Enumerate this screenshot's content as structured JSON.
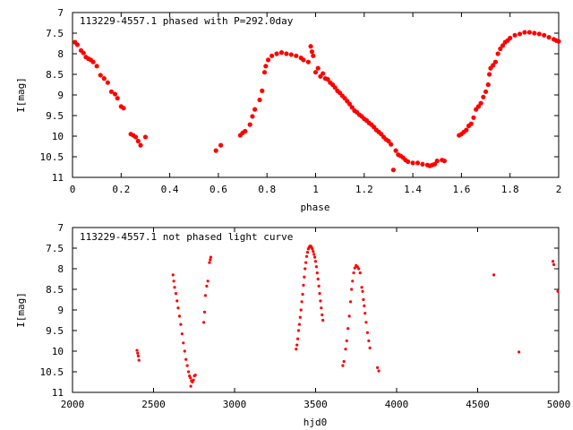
{
  "chart_data": [
    {
      "type": "scatter",
      "title": "113229-4557.1 phased with P=292.0day",
      "xlabel": "phase",
      "ylabel": "I[mag]",
      "xlim": [
        0,
        2
      ],
      "ylim": [
        11,
        7
      ],
      "y_inverted": true,
      "xticks": [
        0,
        0.2,
        0.4,
        0.6,
        0.8,
        1,
        1.2,
        1.4,
        1.6,
        1.8,
        2
      ],
      "xtick_labels": [
        "0",
        "0.2",
        "0.4",
        "0.6",
        "0.8",
        "1",
        "1.2",
        "1.4",
        "1.6",
        "1.8",
        "2"
      ],
      "yticks": [
        7,
        7.5,
        8,
        8.5,
        9,
        9.5,
        10,
        10.5,
        11
      ],
      "ytick_labels": [
        "7",
        "7.5",
        "8",
        "8.5",
        "9",
        "9.5",
        "10",
        "10.5",
        "11"
      ],
      "grid": false,
      "marker_color": "#ff0000",
      "points": [
        [
          0.01,
          7.72
        ],
        [
          0.02,
          7.78
        ],
        [
          0.035,
          7.92
        ],
        [
          0.045,
          7.98
        ],
        [
          0.055,
          8.08
        ],
        [
          0.065,
          8.12
        ],
        [
          0.075,
          8.15
        ],
        [
          0.085,
          8.2
        ],
        [
          0.1,
          8.3
        ],
        [
          0.115,
          8.52
        ],
        [
          0.13,
          8.6
        ],
        [
          0.145,
          8.7
        ],
        [
          0.16,
          8.92
        ],
        [
          0.175,
          8.98
        ],
        [
          0.185,
          9.08
        ],
        [
          0.2,
          9.28
        ],
        [
          0.21,
          9.32
        ],
        [
          0.24,
          9.95
        ],
        [
          0.25,
          9.98
        ],
        [
          0.26,
          10.02
        ],
        [
          0.27,
          10.12
        ],
        [
          0.28,
          10.22
        ],
        [
          0.3,
          10.02
        ],
        [
          0.59,
          10.35
        ],
        [
          0.61,
          10.22
        ],
        [
          0.69,
          9.98
        ],
        [
          0.7,
          9.92
        ],
        [
          0.71,
          9.88
        ],
        [
          0.73,
          9.72
        ],
        [
          0.74,
          9.52
        ],
        [
          0.75,
          9.35
        ],
        [
          0.77,
          9.12
        ],
        [
          0.78,
          8.9
        ],
        [
          0.79,
          8.45
        ],
        [
          0.795,
          8.3
        ],
        [
          0.805,
          8.15
        ],
        [
          0.82,
          8.05
        ],
        [
          0.84,
          8.0
        ],
        [
          0.86,
          7.97
        ],
        [
          0.88,
          8.0
        ],
        [
          0.9,
          8.02
        ],
        [
          0.92,
          8.05
        ],
        [
          0.94,
          8.1
        ],
        [
          0.95,
          8.15
        ],
        [
          0.97,
          8.2
        ],
        [
          0.98,
          7.82
        ],
        [
          0.985,
          7.95
        ],
        [
          0.99,
          8.05
        ],
        [
          1.0,
          8.45
        ],
        [
          1.01,
          8.35
        ],
        [
          1.02,
          8.55
        ],
        [
          1.03,
          8.48
        ],
        [
          1.04,
          8.6
        ],
        [
          1.05,
          8.62
        ],
        [
          1.06,
          8.7
        ],
        [
          1.07,
          8.75
        ],
        [
          1.08,
          8.82
        ],
        [
          1.09,
          8.9
        ],
        [
          1.1,
          8.95
        ],
        [
          1.11,
          9.02
        ],
        [
          1.12,
          9.08
        ],
        [
          1.13,
          9.15
        ],
        [
          1.14,
          9.22
        ],
        [
          1.15,
          9.3
        ],
        [
          1.16,
          9.38
        ],
        [
          1.17,
          9.42
        ],
        [
          1.18,
          9.48
        ],
        [
          1.19,
          9.52
        ],
        [
          1.2,
          9.58
        ],
        [
          1.21,
          9.62
        ],
        [
          1.22,
          9.68
        ],
        [
          1.23,
          9.72
        ],
        [
          1.24,
          9.78
        ],
        [
          1.25,
          9.85
        ],
        [
          1.26,
          9.9
        ],
        [
          1.27,
          9.95
        ],
        [
          1.28,
          10.02
        ],
        [
          1.29,
          10.08
        ],
        [
          1.3,
          10.12
        ],
        [
          1.31,
          10.2
        ],
        [
          1.32,
          10.82
        ],
        [
          1.33,
          10.35
        ],
        [
          1.34,
          10.45
        ],
        [
          1.35,
          10.48
        ],
        [
          1.36,
          10.52
        ],
        [
          1.37,
          10.58
        ],
        [
          1.38,
          10.62
        ],
        [
          1.4,
          10.65
        ],
        [
          1.42,
          10.65
        ],
        [
          1.44,
          10.68
        ],
        [
          1.46,
          10.7
        ],
        [
          1.47,
          10.72
        ],
        [
          1.48,
          10.7
        ],
        [
          1.49,
          10.68
        ],
        [
          1.5,
          10.6
        ],
        [
          1.52,
          10.58
        ],
        [
          1.53,
          10.6
        ],
        [
          1.59,
          9.98
        ],
        [
          1.6,
          9.95
        ],
        [
          1.61,
          9.9
        ],
        [
          1.62,
          9.85
        ],
        [
          1.63,
          9.75
        ],
        [
          1.64,
          9.7
        ],
        [
          1.65,
          9.55
        ],
        [
          1.66,
          9.35
        ],
        [
          1.67,
          9.28
        ],
        [
          1.68,
          9.2
        ],
        [
          1.69,
          9.05
        ],
        [
          1.7,
          8.92
        ],
        [
          1.71,
          8.75
        ],
        [
          1.715,
          8.5
        ],
        [
          1.72,
          8.35
        ],
        [
          1.73,
          8.28
        ],
        [
          1.74,
          8.2
        ],
        [
          1.75,
          8.0
        ],
        [
          1.76,
          7.88
        ],
        [
          1.77,
          7.8
        ],
        [
          1.78,
          7.72
        ],
        [
          1.79,
          7.68
        ],
        [
          1.8,
          7.62
        ],
        [
          1.82,
          7.55
        ],
        [
          1.84,
          7.52
        ],
        [
          1.86,
          7.48
        ],
        [
          1.88,
          7.48
        ],
        [
          1.9,
          7.5
        ],
        [
          1.92,
          7.52
        ],
        [
          1.94,
          7.55
        ],
        [
          1.96,
          7.6
        ],
        [
          1.98,
          7.65
        ],
        [
          1.99,
          7.68
        ],
        [
          2.0,
          7.7
        ]
      ]
    },
    {
      "type": "scatter",
      "title": "113229-4557.1 not phased light curve",
      "xlabel": "hjd0",
      "ylabel": "I[mag]",
      "xlim": [
        2000,
        5000
      ],
      "ylim": [
        11,
        7
      ],
      "y_inverted": true,
      "xticks": [
        2000,
        2500,
        3000,
        3500,
        4000,
        4500,
        5000
      ],
      "xtick_labels": [
        "2000",
        "2500",
        "3000",
        "3500",
        "4000",
        "4500",
        "5000"
      ],
      "yticks": [
        7,
        7.5,
        8,
        8.5,
        9,
        9.5,
        10,
        10.5,
        11
      ],
      "ytick_labels": [
        "7",
        "7.5",
        "8",
        "8.5",
        "9",
        "9.5",
        "10",
        "10.5",
        "11"
      ],
      "grid": false,
      "marker_color": "#ff0000",
      "points": [
        [
          2398,
          9.98
        ],
        [
          2402,
          10.05
        ],
        [
          2406,
          10.12
        ],
        [
          2410,
          10.22
        ],
        [
          2620,
          8.15
        ],
        [
          2625,
          8.3
        ],
        [
          2630,
          8.45
        ],
        [
          2638,
          8.6
        ],
        [
          2645,
          8.78
        ],
        [
          2652,
          8.95
        ],
        [
          2660,
          9.15
        ],
        [
          2668,
          9.35
        ],
        [
          2676,
          9.58
        ],
        [
          2684,
          9.8
        ],
        [
          2692,
          10.0
        ],
        [
          2700,
          10.2
        ],
        [
          2708,
          10.35
        ],
        [
          2716,
          10.5
        ],
        [
          2722,
          10.6
        ],
        [
          2728,
          10.65
        ],
        [
          2734,
          10.72
        ],
        [
          2740,
          10.75
        ],
        [
          2746,
          10.7
        ],
        [
          2752,
          10.6
        ],
        [
          2758,
          10.58
        ],
        [
          2730,
          10.85
        ],
        [
          2810,
          9.3
        ],
        [
          2815,
          9.05
        ],
        [
          2820,
          8.65
        ],
        [
          2828,
          8.42
        ],
        [
          2835,
          8.3
        ],
        [
          2845,
          7.85
        ],
        [
          2850,
          7.78
        ],
        [
          2853,
          7.72
        ],
        [
          3380,
          9.95
        ],
        [
          3385,
          9.85
        ],
        [
          3390,
          9.7
        ],
        [
          3395,
          9.5
        ],
        [
          3400,
          9.35
        ],
        [
          3405,
          9.18
        ],
        [
          3410,
          9.0
        ],
        [
          3415,
          8.8
        ],
        [
          3420,
          8.62
        ],
        [
          3425,
          8.4
        ],
        [
          3430,
          8.2
        ],
        [
          3435,
          8.0
        ],
        [
          3440,
          7.85
        ],
        [
          3445,
          7.7
        ],
        [
          3450,
          7.6
        ],
        [
          3455,
          7.52
        ],
        [
          3460,
          7.48
        ],
        [
          3465,
          7.45
        ],
        [
          3470,
          7.45
        ],
        [
          3475,
          7.48
        ],
        [
          3480,
          7.52
        ],
        [
          3485,
          7.58
        ],
        [
          3490,
          7.65
        ],
        [
          3495,
          7.72
        ],
        [
          3500,
          7.82
        ],
        [
          3505,
          7.95
        ],
        [
          3510,
          8.1
        ],
        [
          3515,
          8.25
        ],
        [
          3520,
          8.42
        ],
        [
          3525,
          8.6
        ],
        [
          3530,
          8.78
        ],
        [
          3535,
          8.95
        ],
        [
          3540,
          9.12
        ],
        [
          3545,
          9.25
        ],
        [
          3668,
          10.35
        ],
        [
          3675,
          10.25
        ],
        [
          3685,
          9.95
        ],
        [
          3692,
          9.75
        ],
        [
          3700,
          9.45
        ],
        [
          3708,
          9.15
        ],
        [
          3716,
          8.8
        ],
        [
          3722,
          8.5
        ],
        [
          3728,
          8.3
        ],
        [
          3735,
          8.1
        ],
        [
          3742,
          7.98
        ],
        [
          3750,
          7.92
        ],
        [
          3758,
          7.95
        ],
        [
          3766,
          8.0
        ],
        [
          3775,
          8.1
        ],
        [
          3785,
          8.45
        ],
        [
          3790,
          8.55
        ],
        [
          3795,
          8.75
        ],
        [
          3800,
          8.9
        ],
        [
          3805,
          9.08
        ],
        [
          3812,
          9.3
        ],
        [
          3820,
          9.55
        ],
        [
          3828,
          9.75
        ],
        [
          3835,
          9.92
        ],
        [
          3882,
          10.4
        ],
        [
          3890,
          10.48
        ],
        [
          4600,
          8.15
        ],
        [
          4755,
          10.02
        ],
        [
          4965,
          7.82
        ],
        [
          4970,
          7.9
        ],
        [
          4995,
          8.55
        ]
      ]
    }
  ]
}
